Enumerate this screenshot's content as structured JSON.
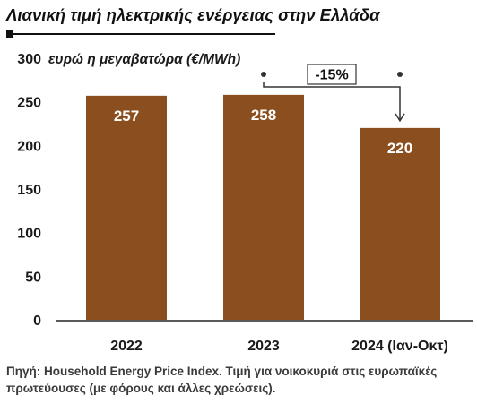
{
  "title": "Λιανική τιμή ηλεκτρικής ενέργειας στην Ελλάδα",
  "source_note": "Πηγή: Household Energy Price Index. Τιμή για νοικοκυριά στις ευρωπαϊκές πρωτεύουσες (με φόρους και άλλες χρεώσεις).",
  "colors": {
    "bar": "#8b4f1f",
    "bar_label": "#ffffff",
    "axis": "#222222",
    "text": "#1a1a1a"
  },
  "chart_data": {
    "type": "bar",
    "categories": [
      "2022",
      "2023",
      "2024 (Ιαν-Οκτ)"
    ],
    "values": [
      257,
      258,
      220
    ],
    "value_labels": [
      "257",
      "258",
      "220"
    ],
    "ylabel": "ευρώ η μεγαβατώρα (€/MWh)",
    "ylim": [
      0,
      300
    ],
    "yticks": [
      0,
      50,
      100,
      150,
      200,
      250,
      300
    ],
    "grid": false,
    "annotation": {
      "text": "-15%",
      "from_category": "2023",
      "to_category": "2024 (Ιαν-Οκτ)"
    }
  }
}
